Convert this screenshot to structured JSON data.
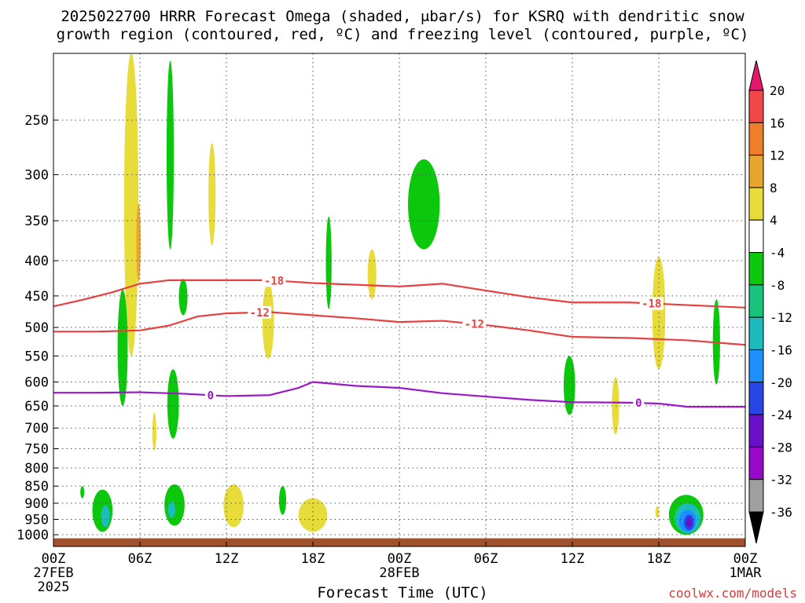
{
  "title": {
    "line1": "2025022700 HRRR Forecast Omega (shaded, μbar/s) for KSRQ with dendritic snow",
    "line2": "growth region (contoured, red, ºC) and freezing level (contoured, purple, ºC)"
  },
  "credit": "coolwx.com/models",
  "chart_data": {
    "type": "heatmap",
    "xlabel": "Forecast Time (UTC)",
    "ylabel": "",
    "x_unit": "forecast hour",
    "xlim": [
      0,
      48
    ],
    "ylim": [
      1000,
      200
    ],
    "y_scale": "log-pressure (hPa)",
    "grid": true,
    "x_ticks": [
      {
        "hour": 0,
        "label": "00Z",
        "sub": "27FEB",
        "sub2": "2025"
      },
      {
        "hour": 6,
        "label": "06Z"
      },
      {
        "hour": 12,
        "label": "12Z"
      },
      {
        "hour": 18,
        "label": "18Z"
      },
      {
        "hour": 24,
        "label": "00Z",
        "sub": "28FEB"
      },
      {
        "hour": 30,
        "label": "06Z"
      },
      {
        "hour": 36,
        "label": "12Z"
      },
      {
        "hour": 42,
        "label": "18Z"
      },
      {
        "hour": 48,
        "label": "00Z",
        "sub": "1MAR"
      }
    ],
    "y_ticks": [
      250,
      300,
      350,
      400,
      450,
      500,
      550,
      600,
      650,
      700,
      750,
      800,
      850,
      900,
      950,
      1000
    ],
    "colorbar": {
      "labels": [
        "20",
        "16",
        "12",
        "8",
        "4",
        "-4",
        "-8",
        "-12",
        "-16",
        "-20",
        "-24",
        "-28",
        "-32",
        "-36"
      ],
      "colors": [
        "#e8176e",
        "#f04848",
        "#f07d2a",
        "#e8a631",
        "#e8dc3a",
        "#ffffff",
        "#0cc80c",
        "#18c47c",
        "#1cbcbc",
        "#1e8fff",
        "#2846e6",
        "#6a10c8",
        "#9808c8",
        "#a0a0a0",
        "#000000"
      ]
    },
    "contours": [
      {
        "label": "-18",
        "color": "#e84040",
        "points": [
          [
            0,
            466
          ],
          [
            2,
            456
          ],
          [
            4,
            445
          ],
          [
            6,
            432
          ],
          [
            8,
            427
          ],
          [
            12,
            427
          ],
          [
            15,
            427
          ],
          [
            18,
            431
          ],
          [
            24,
            436
          ],
          [
            27,
            432
          ],
          [
            30,
            442
          ],
          [
            33,
            452
          ],
          [
            36,
            460
          ],
          [
            40,
            460
          ],
          [
            44,
            464
          ],
          [
            48,
            468
          ]
        ],
        "label_hours": [
          15.3,
          41.5
        ]
      },
      {
        "label": "-12",
        "color": "#e84040",
        "points": [
          [
            0,
            507
          ],
          [
            3,
            507
          ],
          [
            6,
            505
          ],
          [
            8,
            497
          ],
          [
            10,
            482
          ],
          [
            12,
            477
          ],
          [
            15,
            475
          ],
          [
            18,
            480
          ],
          [
            21,
            485
          ],
          [
            24,
            491
          ],
          [
            27,
            489
          ],
          [
            30,
            496
          ],
          [
            33,
            505
          ],
          [
            36,
            516
          ],
          [
            40,
            518
          ],
          [
            44,
            522
          ],
          [
            48,
            530
          ]
        ],
        "label_hours": [
          14.3,
          29.2
        ]
      },
      {
        "label": "0",
        "color": "#9a18c8",
        "points": [
          [
            0,
            622
          ],
          [
            3,
            622
          ],
          [
            6,
            621
          ],
          [
            9,
            624
          ],
          [
            12,
            629
          ],
          [
            15,
            627
          ],
          [
            17,
            612
          ],
          [
            18,
            600
          ],
          [
            21,
            608
          ],
          [
            24,
            612
          ],
          [
            27,
            623
          ],
          [
            30,
            630
          ],
          [
            33,
            637
          ],
          [
            36,
            642
          ],
          [
            40,
            643
          ],
          [
            42,
            645
          ],
          [
            44,
            652
          ],
          [
            48,
            652
          ]
        ],
        "label_hours": [
          10.9,
          40.6
        ]
      }
    ],
    "omega_regions": [
      {
        "value": 4,
        "color": "#e8dc3a",
        "hour": 5.4,
        "p_top": 200,
        "p_bottom": 550,
        "width_h": 1.0
      },
      {
        "value": 8,
        "color": "#e8a631",
        "hour": 5.9,
        "p_top": 330,
        "p_bottom": 430,
        "width_h": 0.3
      },
      {
        "value": -4,
        "color": "#0cc80c",
        "hour": 8.1,
        "p_top": 205,
        "p_bottom": 385,
        "width_h": 0.5
      },
      {
        "value": 4,
        "color": "#e8dc3a",
        "hour": 11.0,
        "p_top": 270,
        "p_bottom": 380,
        "width_h": 0.5
      },
      {
        "value": -4,
        "color": "#0cc80c",
        "hour": 9.0,
        "p_top": 425,
        "p_bottom": 480,
        "width_h": 0.6
      },
      {
        "value": -4,
        "color": "#0cc80c",
        "hour": 4.8,
        "p_top": 440,
        "p_bottom": 650,
        "width_h": 0.7
      },
      {
        "value": -4,
        "color": "#0cc80c",
        "hour": 8.3,
        "p_top": 575,
        "p_bottom": 725,
        "width_h": 0.8
      },
      {
        "value": 4,
        "color": "#e8dc3a",
        "hour": 7.0,
        "p_top": 665,
        "p_bottom": 755,
        "width_h": 0.2
      },
      {
        "value": 4,
        "color": "#e8dc3a",
        "hour": 14.9,
        "p_top": 430,
        "p_bottom": 555,
        "width_h": 0.8
      },
      {
        "value": -4,
        "color": "#0cc80c",
        "hour": 19.1,
        "p_top": 345,
        "p_bottom": 470,
        "width_h": 0.4
      },
      {
        "value": 4,
        "color": "#e8dc3a",
        "hour": 22.1,
        "p_top": 385,
        "p_bottom": 455,
        "width_h": 0.6
      },
      {
        "value": -4,
        "color": "#0cc80c",
        "hour": 25.7,
        "p_top": 285,
        "p_bottom": 385,
        "width_h": 2.2
      },
      {
        "value": -4,
        "color": "#0cc80c",
        "hour": 35.8,
        "p_top": 550,
        "p_bottom": 670,
        "width_h": 0.8
      },
      {
        "value": 4,
        "color": "#e8dc3a",
        "hour": 39.0,
        "p_top": 590,
        "p_bottom": 715,
        "width_h": 0.5
      },
      {
        "value": 4,
        "color": "#e8dc3a",
        "hour": 42.0,
        "p_top": 395,
        "p_bottom": 575,
        "width_h": 0.9
      },
      {
        "value": -4,
        "color": "#0cc80c",
        "hour": 46.0,
        "p_top": 455,
        "p_bottom": 605,
        "width_h": 0.5
      },
      {
        "value": -4,
        "color": "#0cc80c",
        "hour": 2.0,
        "p_top": 850,
        "p_bottom": 885,
        "width_h": 0.2
      },
      {
        "value": -4,
        "color": "#0cc80c",
        "hour": 3.4,
        "p_top": 860,
        "p_bottom": 990,
        "width_h": 1.4
      },
      {
        "value": -12,
        "color": "#1cbcbc",
        "hour": 3.6,
        "p_top": 905,
        "p_bottom": 975,
        "width_h": 0.6
      },
      {
        "value": -4,
        "color": "#0cc80c",
        "hour": 8.4,
        "p_top": 845,
        "p_bottom": 970,
        "width_h": 1.4
      },
      {
        "value": -12,
        "color": "#1cbcbc",
        "hour": 8.2,
        "p_top": 895,
        "p_bottom": 945,
        "width_h": 0.5
      },
      {
        "value": 4,
        "color": "#e8dc3a",
        "hour": 12.5,
        "p_top": 845,
        "p_bottom": 975,
        "width_h": 1.4
      },
      {
        "value": -4,
        "color": "#0cc80c",
        "hour": 15.9,
        "p_top": 850,
        "p_bottom": 935,
        "width_h": 0.5
      },
      {
        "value": 4,
        "color": "#e8dc3a",
        "hour": 18.0,
        "p_top": 885,
        "p_bottom": 990,
        "width_h": 2.0
      },
      {
        "value": 4,
        "color": "#e8dc3a",
        "hour": 41.9,
        "p_top": 910,
        "p_bottom": 945,
        "width_h": 0.2
      },
      {
        "value": -4,
        "color": "#0cc80c",
        "hour": 43.9,
        "p_top": 875,
        "p_bottom": 1000,
        "width_h": 2.4
      },
      {
        "value": -12,
        "color": "#1cbcbc",
        "hour": 44.0,
        "p_top": 900,
        "p_bottom": 995,
        "width_h": 1.8
      },
      {
        "value": -16,
        "color": "#1e8fff",
        "hour": 44.0,
        "p_top": 920,
        "p_bottom": 990,
        "width_h": 1.2
      },
      {
        "value": -24,
        "color": "#2846e6",
        "hour": 44.1,
        "p_top": 935,
        "p_bottom": 985,
        "width_h": 0.7
      },
      {
        "value": -28,
        "color": "#6a10c8",
        "hour": 44.1,
        "p_top": 945,
        "p_bottom": 975,
        "width_h": 0.4
      }
    ]
  }
}
